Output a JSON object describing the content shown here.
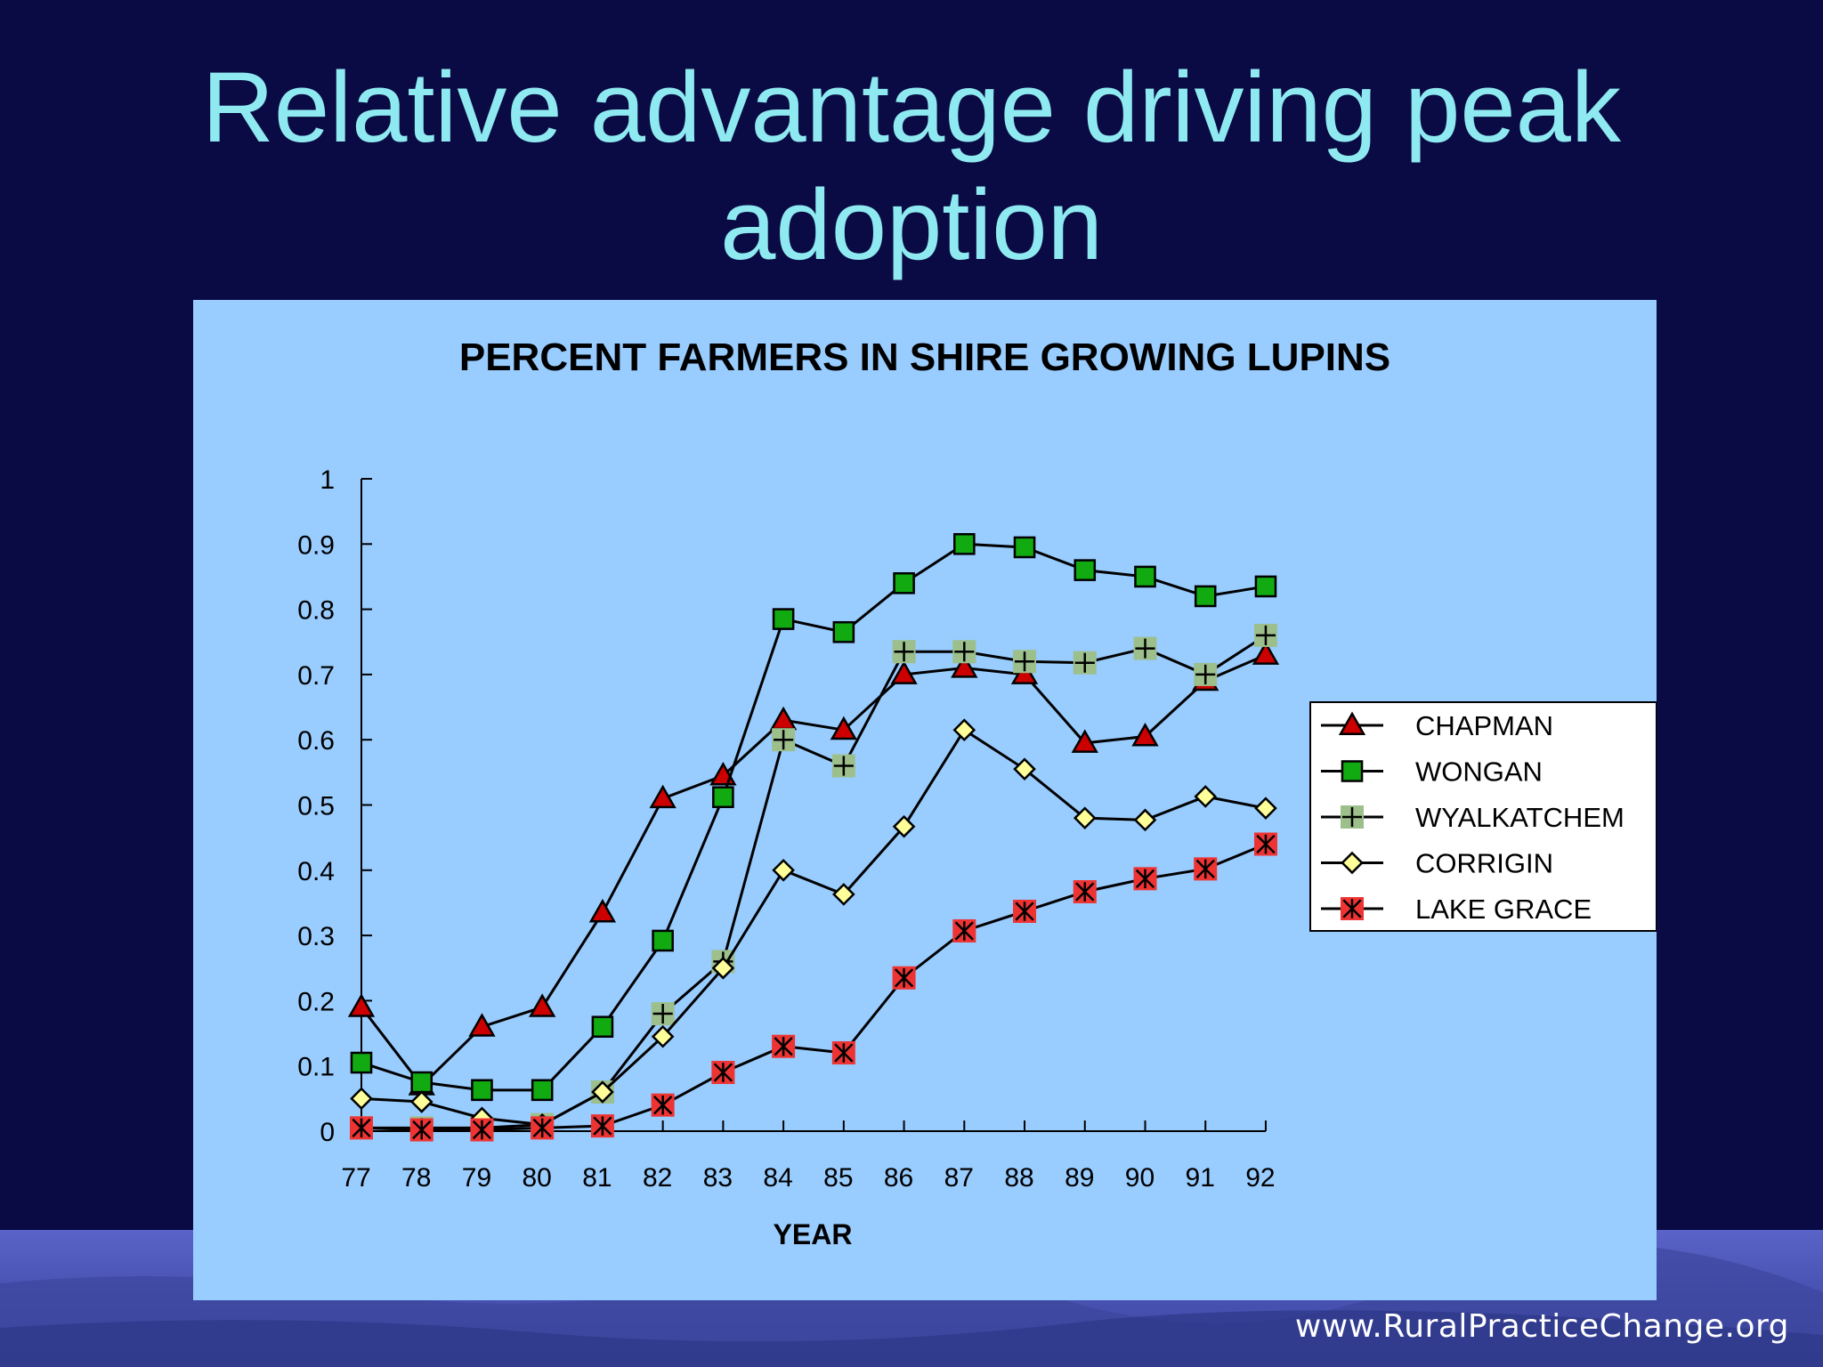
{
  "slide": {
    "title": "Relative advantage driving peak adoption",
    "footer": "www.RuralPracticeChange.org"
  },
  "colors": {
    "background": "#0a0a44",
    "title": "#8eeaf0",
    "plot_background": "#99ccff"
  },
  "chart_data": {
    "type": "line",
    "title": "PERCENT FARMERS IN SHIRE GROWING LUPINS",
    "xlabel": "YEAR",
    "ylabel": "",
    "categories": [
      "77",
      "78",
      "79",
      "80",
      "81",
      "82",
      "83",
      "84",
      "85",
      "86",
      "87",
      "88",
      "89",
      "90",
      "91",
      "92"
    ],
    "ylim": [
      0,
      1
    ],
    "yticks": [
      "0",
      "0.1",
      "0.2",
      "0.3",
      "0.4",
      "0.5",
      "0.6",
      "0.7",
      "0.8",
      "0.9",
      "1"
    ],
    "grid": false,
    "legend_position": "right",
    "series": [
      {
        "name": "CHAPMAN",
        "marker": "triangle",
        "color": "#cc0000",
        "values": [
          0.19,
          0.07,
          0.16,
          0.19,
          0.335,
          0.51,
          0.545,
          0.63,
          0.615,
          0.7,
          0.71,
          0.7,
          0.595,
          0.605,
          0.69,
          0.73
        ]
      },
      {
        "name": "WONGAN",
        "marker": "square",
        "color": "#11aa11",
        "values": [
          0.105,
          0.075,
          0.063,
          0.063,
          0.16,
          0.292,
          0.512,
          0.785,
          0.765,
          0.84,
          0.9,
          0.895,
          0.86,
          0.85,
          0.82,
          0.835
        ]
      },
      {
        "name": "WYALKATCHEM",
        "marker": "plus",
        "color": "#9dbf8c",
        "values": [
          0.005,
          0.005,
          0.005,
          0.01,
          0.06,
          0.18,
          0.26,
          0.6,
          0.56,
          0.735,
          0.735,
          0.72,
          0.718,
          0.74,
          0.7,
          0.76
        ]
      },
      {
        "name": "CORRIGIN",
        "marker": "diamond",
        "color": "#ffff99",
        "values": [
          0.05,
          0.045,
          0.02,
          0.01,
          0.06,
          0.145,
          0.25,
          0.4,
          0.363,
          0.467,
          0.615,
          0.555,
          0.48,
          0.477,
          0.513,
          0.495
        ]
      },
      {
        "name": "LAKE GRACE",
        "marker": "xstar",
        "color": "#ee3333",
        "values": [
          0.005,
          0.002,
          0.002,
          0.005,
          0.008,
          0.04,
          0.09,
          0.13,
          0.12,
          0.235,
          0.307,
          0.337,
          0.367,
          0.387,
          0.402,
          0.44
        ]
      }
    ]
  }
}
